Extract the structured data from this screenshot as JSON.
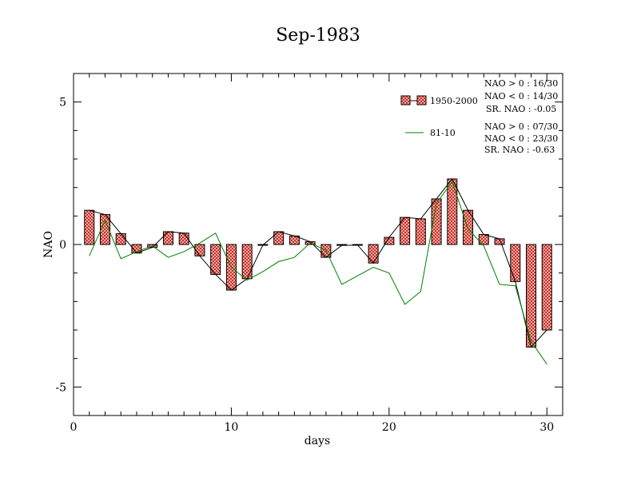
{
  "chart_data": {
    "type": "bar",
    "title": "Sep-1983",
    "xlabel": "days",
    "ylabel": "NAO",
    "xlim": [
      0,
      31
    ],
    "ylim": [
      -6,
      6
    ],
    "xticks": [
      0,
      10,
      20,
      30
    ],
    "yticks": [
      -5,
      0,
      5
    ],
    "grid": false,
    "legend_position": "top-right",
    "x": [
      1,
      2,
      3,
      4,
      5,
      6,
      7,
      8,
      9,
      10,
      11,
      12,
      13,
      14,
      15,
      16,
      17,
      18,
      19,
      20,
      21,
      22,
      23,
      24,
      25,
      26,
      27,
      28,
      29,
      30
    ],
    "series": [
      {
        "name": "1950-2000",
        "style": "bars-with-line",
        "color": "#e06666",
        "line_color": "#000000",
        "values": [
          1.2,
          1.05,
          0.38,
          -0.3,
          -0.1,
          0.45,
          0.4,
          -0.4,
          -1.05,
          -1.6,
          -1.2,
          -0.02,
          0.45,
          0.3,
          0.1,
          -0.45,
          -0.03,
          -0.02,
          -0.65,
          0.25,
          0.95,
          0.9,
          1.6,
          2.3,
          1.2,
          0.35,
          0.2,
          -1.3,
          -3.6,
          -3.0
        ]
      },
      {
        "name": "81-10",
        "style": "line",
        "color": "#008000",
        "values": [
          -0.4,
          0.85,
          -0.5,
          -0.25,
          -0.05,
          -0.45,
          -0.25,
          0.05,
          0.4,
          -0.8,
          -1.25,
          -0.95,
          -0.6,
          -0.45,
          0.05,
          -0.2,
          -1.4,
          -1.1,
          -0.8,
          -1.0,
          -2.1,
          -1.65,
          1.45,
          2.2,
          0.55,
          -0.05,
          -1.4,
          -1.45,
          -3.4,
          -4.2
        ]
      }
    ],
    "stats": [
      [
        "NAO > 0 : 16/30",
        "NAO < 0 : 14/30",
        "SR. NAO : -0.05"
      ],
      [
        "NAO > 0 : 07/30",
        "NAO < 0 : 23/30",
        "SR. NAO : -0.63"
      ]
    ]
  }
}
